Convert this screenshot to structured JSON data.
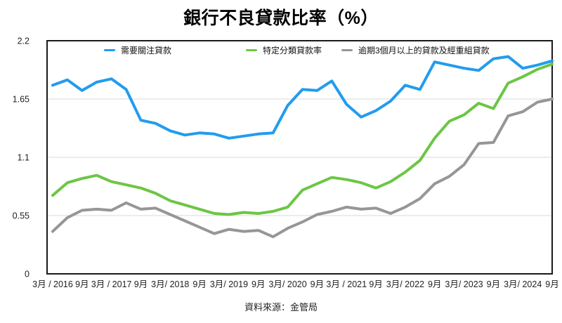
{
  "chart_data": {
    "type": "line",
    "title": "銀行不良貸款比率（%）",
    "xlabel": "",
    "ylabel": "",
    "ylim": [
      0,
      2.2
    ],
    "y_ticks": [
      "0",
      "0.55",
      "1.1",
      "1.65",
      "2.2"
    ],
    "x_labels": [
      "3月 / 2016",
      "9月",
      "3月 / 2017",
      "9月",
      "3月/ 2018",
      "9月",
      "3月/ 2019",
      "9月",
      "3月/ 2020",
      "9月",
      "3月 / 2021",
      "9月",
      "3月/ 2022",
      "9月",
      "3月/ 2023",
      "9月",
      "3月/ 2024",
      "9月"
    ],
    "x_interval": "quarterly",
    "x_range": [
      "3月/2016",
      "9月/2024"
    ],
    "grid": "horizontal",
    "legend_position": "top",
    "series": [
      {
        "name": "需要關注貸款",
        "color": "#229CEE",
        "values": [
          1.78,
          1.83,
          1.73,
          1.81,
          1.84,
          1.74,
          1.45,
          1.42,
          1.35,
          1.31,
          1.33,
          1.32,
          1.28,
          1.3,
          1.32,
          1.33,
          1.59,
          1.74,
          1.73,
          1.82,
          1.6,
          1.48,
          1.54,
          1.63,
          1.78,
          1.74,
          2.0,
          1.97,
          1.94,
          1.92,
          2.03,
          2.05,
          1.94,
          1.97,
          2.01
        ]
      },
      {
        "name": "特定分類貸款率",
        "color": "#6CC644",
        "values": [
          0.74,
          0.86,
          0.9,
          0.93,
          0.87,
          0.84,
          0.81,
          0.76,
          0.69,
          0.65,
          0.61,
          0.57,
          0.56,
          0.58,
          0.57,
          0.59,
          0.63,
          0.79,
          0.85,
          0.91,
          0.89,
          0.86,
          0.81,
          0.87,
          0.96,
          1.07,
          1.28,
          1.44,
          1.5,
          1.61,
          1.56,
          1.8,
          1.86,
          1.93,
          1.98
        ]
      },
      {
        "name": "逾期3個月以上的貸款及經重組貸款",
        "color": "#969696",
        "values": [
          0.4,
          0.53,
          0.6,
          0.61,
          0.6,
          0.67,
          0.61,
          0.62,
          0.56,
          0.5,
          0.44,
          0.38,
          0.42,
          0.4,
          0.41,
          0.35,
          0.43,
          0.49,
          0.56,
          0.59,
          0.63,
          0.61,
          0.62,
          0.57,
          0.63,
          0.71,
          0.85,
          0.92,
          1.03,
          1.23,
          1.24,
          1.49,
          1.53,
          1.62,
          1.65
        ]
      }
    ]
  },
  "footer": {
    "source": "資料來源：金管局"
  },
  "style_colors": {
    "border": "#1a1a1a",
    "gridline": "#d9d9d9",
    "tick_text": "#222222"
  }
}
